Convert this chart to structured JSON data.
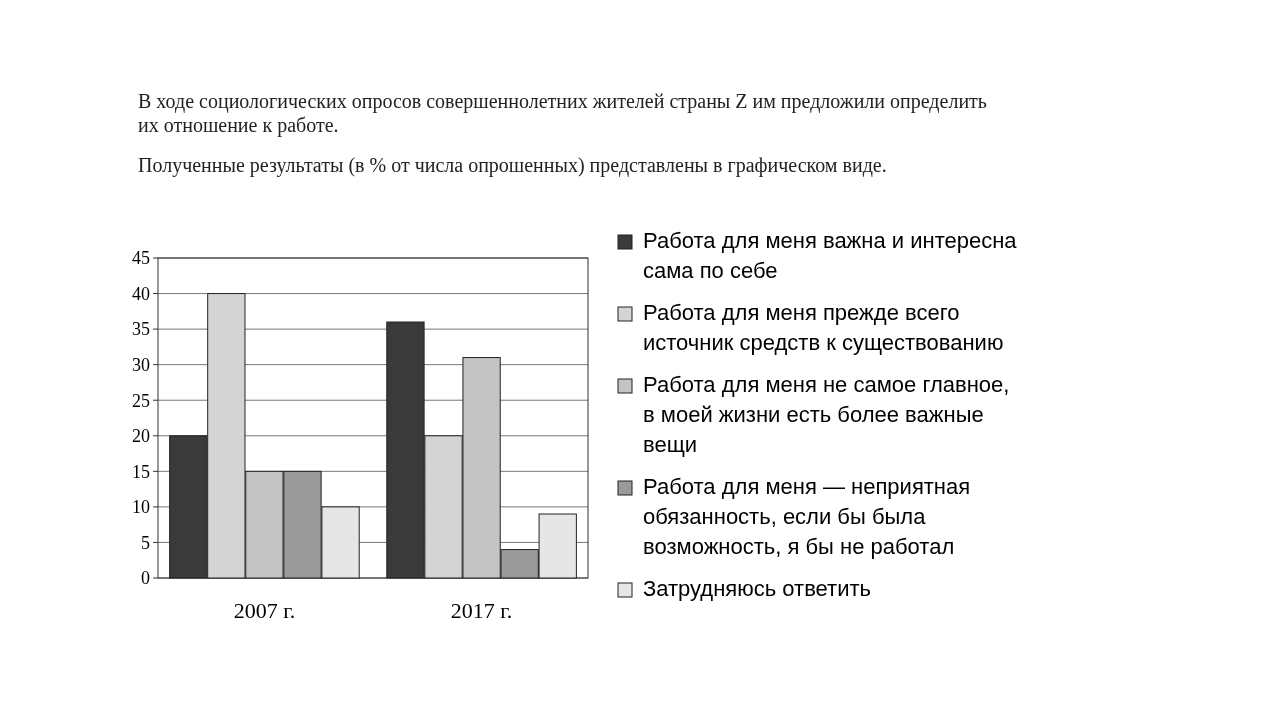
{
  "chart_data": {
    "type": "bar",
    "title": "В ходе социологических опросов совершеннолетних жителей страны Z им предложили определить их отношение к работе.",
    "subtitle": "Полученные результаты (в % от числа опрошенных) представлены в графическом виде.",
    "categories": [
      "2007 г.",
      "2017 г."
    ],
    "series": [
      {
        "name": "Работа для меня важна и интересна сама по себе",
        "color": "#3a3a3a",
        "values": [
          20,
          36
        ]
      },
      {
        "name": "Работа для меня прежде всего источник средств к существованию",
        "color": "#d4d4d4",
        "values": [
          40,
          20
        ]
      },
      {
        "name": "Работа для меня не самое главное, в моей жизни есть более важные вещи",
        "color": "#c4c4c4",
        "values": [
          15,
          31
        ]
      },
      {
        "name": "Работа для меня — неприятная обязанность, если бы была возможность, я бы не работал",
        "color": "#9a9a9a",
        "values": [
          15,
          4
        ]
      },
      {
        "name": "Затрудняюсь ответить",
        "color": "#e6e6e6",
        "values": [
          10,
          9
        ]
      }
    ],
    "ylim": [
      0,
      45
    ],
    "yticks": [
      0,
      5,
      10,
      15,
      20,
      25,
      30,
      35,
      40,
      45
    ],
    "grid": "y",
    "legend": "right"
  }
}
